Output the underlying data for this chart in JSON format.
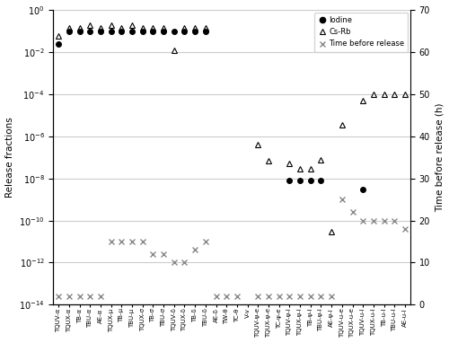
{
  "categories": [
    "TQUV-α",
    "TQUX-α",
    "TB-α",
    "TBU-α",
    "AE-α",
    "TQUX-μ",
    "TB-μ",
    "TBU-μ",
    "TQUX-σ",
    "TB-σ",
    "TBU-σ",
    "TQUV-δ",
    "TQUX-δ",
    "TB-δ",
    "TBU-δ",
    "AE-δ",
    "TW-θ",
    "TC-θ",
    "V-v",
    "TQUV-ψ-e",
    "TQUX-ψ-e",
    "TC-ψ-e",
    "TQUV-ψ-l",
    "TQUX-ψ-l",
    "TB-ψ-l",
    "TBU-ψ-l",
    "AE-ψ-l",
    "TQUV-u-e",
    "TQUX-u-e",
    "TQUV-u-l",
    "TQUX-u-l",
    "TB-u-l",
    "TBU-u-l",
    "AE-u-l"
  ],
  "iodine": [
    0.025,
    0.1,
    0.1,
    0.1,
    0.1,
    0.1,
    0.1,
    0.1,
    0.1,
    0.1,
    0.1,
    0.1,
    0.1,
    0.1,
    0.1,
    null,
    null,
    null,
    null,
    null,
    null,
    null,
    8e-09,
    8e-09,
    8e-09,
    8e-09,
    null,
    null,
    null,
    3e-09,
    null,
    null,
    null,
    null
  ],
  "csrb": [
    0.06,
    0.15,
    0.15,
    0.2,
    0.15,
    0.2,
    0.15,
    0.2,
    0.15,
    0.15,
    0.15,
    0.012,
    0.15,
    0.15,
    0.15,
    null,
    null,
    null,
    null,
    4e-07,
    7e-08,
    null,
    5e-08,
    3e-08,
    3e-08,
    8e-08,
    3e-11,
    3.5e-06,
    null,
    5e-05,
    0.0001,
    0.0001,
    0.0001,
    0.0001
  ],
  "time_h": [
    2.0,
    2.0,
    2.0,
    2.0,
    2.0,
    15.0,
    15.0,
    15.0,
    15.0,
    12.0,
    12.0,
    10.0,
    10.0,
    13.0,
    15.0,
    2.0,
    2.0,
    2.0,
    null,
    2.0,
    2.0,
    2.0,
    2.0,
    2.0,
    2.0,
    2.0,
    2.0,
    25.0,
    22.0,
    20.0,
    20.0,
    20.0,
    20.0,
    18.0
  ],
  "ylabel_left": "Release fractions",
  "ylabel_right": "Time before release (h)",
  "ylim_right": [
    0,
    70
  ],
  "right_ticks": [
    0,
    10,
    20,
    30,
    40,
    50,
    60,
    70
  ],
  "iodine_color": "#000000",
  "csrb_color": "#000000",
  "time_color": "#888888",
  "grid_color": "#cccccc",
  "bg_color": "#ffffff",
  "markersize": 4.5
}
